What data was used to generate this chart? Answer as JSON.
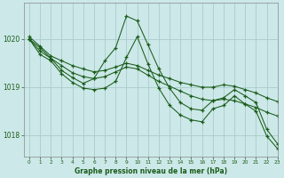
{
  "title": "Graphe pression niveau de la mer (hPa)",
  "bg_color": "#cce8e8",
  "grid_color": "#aacccc",
  "line_color": "#1a5c1a",
  "xlim": [
    -0.5,
    23
  ],
  "ylim": [
    1017.55,
    1020.75
  ],
  "yticks": [
    1018,
    1019,
    1020
  ],
  "xticks": [
    0,
    1,
    2,
    3,
    4,
    5,
    6,
    7,
    8,
    9,
    10,
    11,
    12,
    13,
    14,
    15,
    16,
    17,
    18,
    19,
    20,
    21,
    22,
    23
  ],
  "series": [
    {
      "x": [
        0,
        1,
        2,
        3,
        4,
        5,
        6,
        7,
        8,
        9,
        10,
        11,
        12,
        13,
        14,
        15,
        16,
        17,
        18,
        19,
        20,
        21,
        22,
        23
      ],
      "y": [
        1020.05,
        1019.85,
        1019.65,
        1019.55,
        1019.45,
        1019.38,
        1019.32,
        1019.35,
        1019.42,
        1019.5,
        1019.45,
        1019.35,
        1019.25,
        1019.18,
        1019.1,
        1019.05,
        1019.0,
        1019.0,
        1019.05,
        1019.02,
        1018.95,
        1018.88,
        1018.78,
        1018.7
      ]
    },
    {
      "x": [
        0,
        1,
        2,
        3,
        4,
        5,
        6,
        7,
        8,
        9,
        10,
        11,
        12,
        13,
        14,
        15,
        16,
        17,
        18,
        19,
        20,
        21,
        22,
        23
      ],
      "y": [
        1020.0,
        1019.75,
        1019.6,
        1019.45,
        1019.3,
        1019.22,
        1019.18,
        1019.22,
        1019.32,
        1019.42,
        1019.38,
        1019.25,
        1019.12,
        1019.02,
        1018.92,
        1018.82,
        1018.75,
        1018.72,
        1018.75,
        1018.72,
        1018.65,
        1018.58,
        1018.48,
        1018.4
      ]
    },
    {
      "x": [
        0,
        1,
        2,
        3,
        4,
        5,
        6,
        7,
        8,
        9,
        10,
        11,
        12,
        13,
        14,
        15,
        16,
        17,
        18,
        19,
        20,
        21,
        22,
        23
      ],
      "y": [
        1020.0,
        1019.82,
        1019.6,
        1019.35,
        1019.2,
        1019.08,
        1019.18,
        1019.55,
        1019.82,
        1020.48,
        1020.38,
        1019.88,
        1019.38,
        1018.98,
        1018.68,
        1018.55,
        1018.52,
        1018.72,
        1018.78,
        1018.95,
        1018.82,
        1018.68,
        1018.12,
        1017.82
      ]
    },
    {
      "x": [
        0,
        1,
        2,
        3,
        4,
        5,
        6,
        7,
        8,
        9,
        10,
        11,
        12,
        13,
        14,
        15,
        16,
        17,
        18,
        19,
        20,
        21,
        22,
        23
      ],
      "y": [
        1020.0,
        1019.68,
        1019.55,
        1019.28,
        1019.1,
        1018.98,
        1018.95,
        1018.98,
        1019.12,
        1019.62,
        1020.05,
        1019.48,
        1018.98,
        1018.62,
        1018.42,
        1018.32,
        1018.28,
        1018.55,
        1018.62,
        1018.82,
        1018.65,
        1018.5,
        1017.98,
        1017.72
      ]
    }
  ]
}
